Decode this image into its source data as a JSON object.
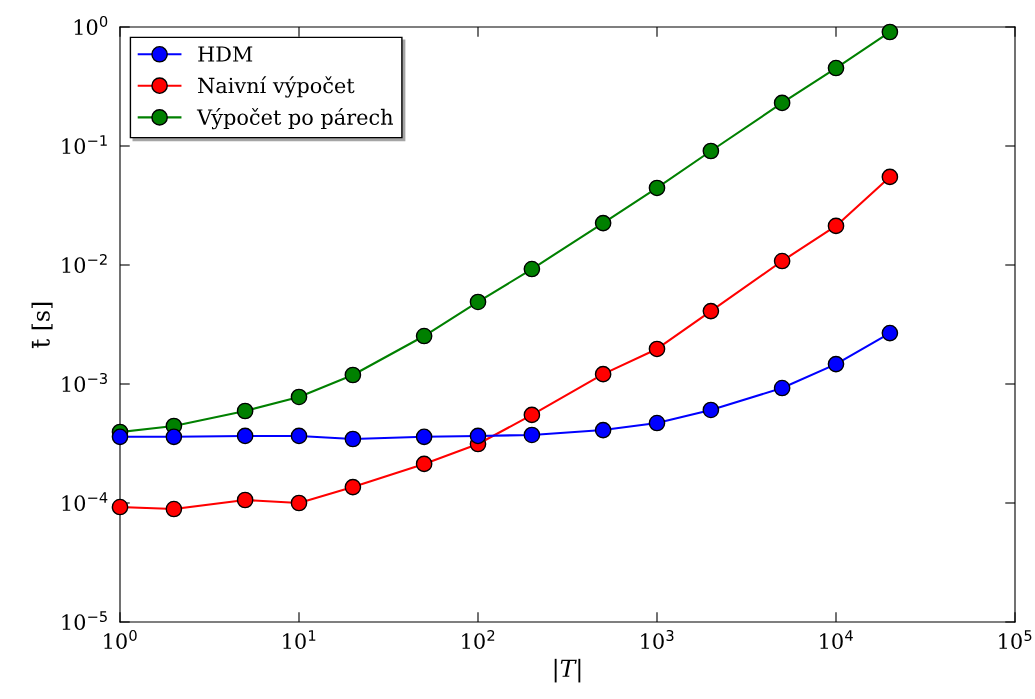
{
  "chart_data": {
    "type": "line",
    "xlabel": "|T|",
    "ylabel": "t̄ [s]",
    "log": "xy",
    "grid": false,
    "legend": "top left",
    "marker": "circle",
    "line_style": "solid",
    "x": [
      1,
      2,
      5,
      10,
      20,
      50,
      100,
      200,
      500,
      1000,
      2000,
      5000,
      10000,
      20000
    ],
    "xlim": [
      1,
      100000
    ],
    "ylim": [
      1e-05,
      1
    ],
    "xticks": [
      {
        "value": 1,
        "label": "10$^{0}$"
      },
      {
        "value": 10,
        "label": "10$^{1}$"
      },
      {
        "value": 100,
        "label": "10$^{2}$"
      },
      {
        "value": 1000,
        "label": "10$^{3}$"
      },
      {
        "value": 10000,
        "label": "10$^{4}$"
      },
      {
        "value": 100000,
        "label": "10$^{5}$"
      }
    ],
    "yticks": [
      {
        "value": 1e-05,
        "label": "10$^{−5}$"
      },
      {
        "value": 0.0001,
        "label": "10$^{−4}$"
      },
      {
        "value": 0.001,
        "label": "10$^{−3}$"
      },
      {
        "value": 0.01,
        "label": "10$^{−2}$"
      },
      {
        "value": 0.1,
        "label": "10$^{−1}$"
      },
      {
        "value": 1,
        "label": "10$^{0}$"
      }
    ],
    "series": [
      {
        "name": "HDM",
        "color": "#0000ff",
        "values": [
          0.00036,
          0.00036,
          0.000366,
          0.000366,
          0.000345,
          0.00036,
          0.000366,
          0.000373,
          0.00041,
          0.00047,
          0.000605,
          0.000925,
          0.00147,
          0.00268
        ]
      },
      {
        "name": "Naivní výpočet",
        "color": "#ff0000",
        "values": [
          9.25e-05,
          8.9e-05,
          0.000106,
          0.0001,
          0.000136,
          0.000213,
          0.000313,
          0.00055,
          0.00121,
          0.00197,
          0.0041,
          0.0108,
          0.0213,
          0.055
        ]
      },
      {
        "name": "Výpočet po párech",
        "color": "#008000",
        "values": [
          0.000395,
          0.000444,
          0.000593,
          0.000778,
          0.00119,
          0.00253,
          0.00489,
          0.00925,
          0.0225,
          0.0444,
          0.0908,
          0.23,
          0.452,
          0.908
        ]
      }
    ]
  }
}
